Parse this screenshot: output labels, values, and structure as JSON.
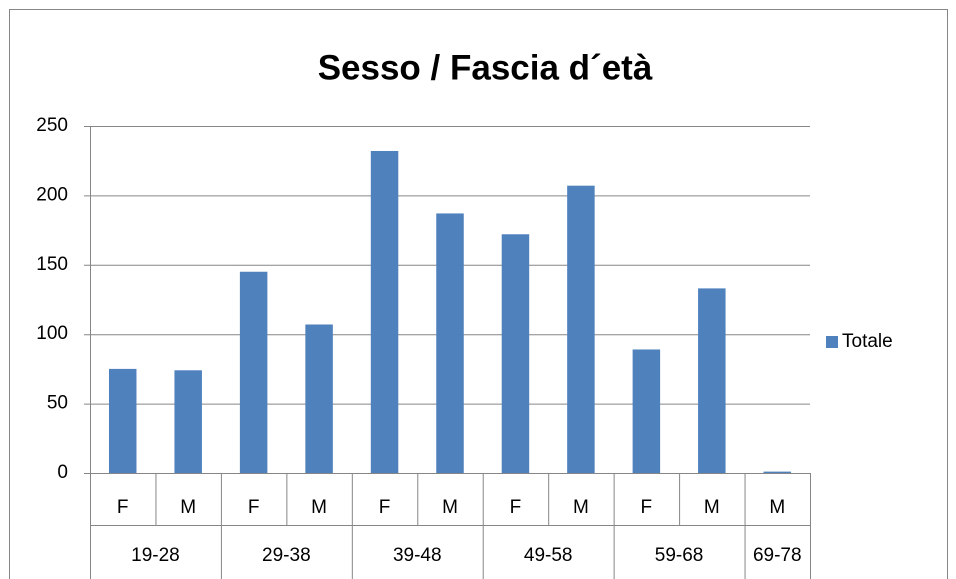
{
  "chart_data": {
    "type": "bar",
    "title": "Sesso / Fascia d´età",
    "categories": [
      "F",
      "M",
      "F",
      "M",
      "F",
      "M",
      "F",
      "M",
      "F",
      "M",
      "M"
    ],
    "groups": [
      "19-28",
      null,
      "29-38",
      null,
      "39-48",
      null,
      "49-58",
      null,
      "59-68",
      null,
      "69-78"
    ],
    "series": [
      {
        "name": "Totale",
        "color": "#4f81bd",
        "values": [
          75,
          74,
          145,
          107,
          232,
          187,
          172,
          207,
          89,
          133,
          1
        ]
      }
    ],
    "ylim": [
      0,
      250
    ],
    "yticks": [
      0,
      50,
      100,
      150,
      200,
      250
    ],
    "grid": true,
    "legend": "right"
  }
}
